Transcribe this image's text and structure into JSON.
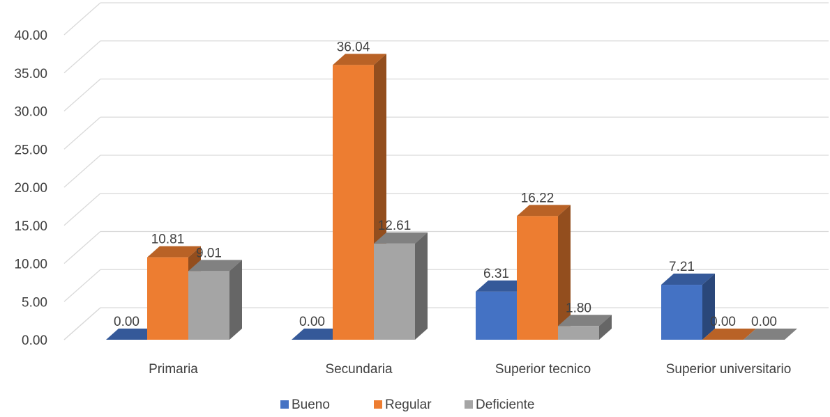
{
  "chart_data": {
    "type": "bar",
    "title": "",
    "categories": [
      "Primaria",
      "Secundaria",
      "Superior tecnico",
      "Superior universitario"
    ],
    "series": [
      {
        "name": "Bueno",
        "color": "#4472C4",
        "values": [
          0.0,
          0.0,
          6.31,
          7.21
        ]
      },
      {
        "name": "Regular",
        "color": "#ED7D31",
        "values": [
          10.81,
          36.04,
          16.22,
          0.0
        ]
      },
      {
        "name": "Deficiente",
        "color": "#A5A5A5",
        "values": [
          9.01,
          12.61,
          1.8,
          0.0
        ]
      }
    ],
    "y_ticks": [
      "0.00",
      "5.00",
      "10.00",
      "15.00",
      "20.00",
      "25.00",
      "30.00",
      "35.00",
      "40.00"
    ],
    "ylim": [
      0,
      40
    ],
    "data_labels": [
      [
        "0.00",
        "0.00",
        "6.31",
        "7.21"
      ],
      [
        "10.81",
        "36.04",
        "16.22",
        "0.00"
      ],
      [
        "9.01",
        "12.61",
        "1.80",
        "0.00"
      ]
    ],
    "grid": true,
    "legend_position": "bottom",
    "style": "3d-clustered-column"
  }
}
